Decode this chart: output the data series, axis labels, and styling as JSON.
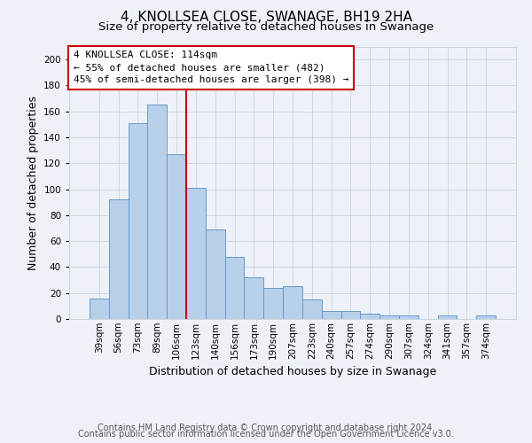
{
  "title": "4, KNOLLSEA CLOSE, SWANAGE, BH19 2HA",
  "subtitle": "Size of property relative to detached houses in Swanage",
  "xlabel": "Distribution of detached houses by size in Swanage",
  "ylabel": "Number of detached properties",
  "bar_labels": [
    "39sqm",
    "56sqm",
    "73sqm",
    "89sqm",
    "106sqm",
    "123sqm",
    "140sqm",
    "156sqm",
    "173sqm",
    "190sqm",
    "207sqm",
    "223sqm",
    "240sqm",
    "257sqm",
    "274sqm",
    "290sqm",
    "307sqm",
    "324sqm",
    "341sqm",
    "357sqm",
    "374sqm"
  ],
  "bar_values": [
    16,
    92,
    151,
    165,
    127,
    101,
    69,
    48,
    32,
    24,
    25,
    15,
    6,
    6,
    4,
    3,
    3,
    0,
    3,
    0,
    3
  ],
  "bar_color": "#b8d0ea",
  "bar_edge_color": "#6699cc",
  "vline_color": "#cc0000",
  "vline_pos": 4.5,
  "ylim": [
    0,
    210
  ],
  "yticks": [
    0,
    20,
    40,
    60,
    80,
    100,
    120,
    140,
    160,
    180,
    200
  ],
  "annotation_title": "4 KNOLLSEA CLOSE: 114sqm",
  "annotation_line1": "← 55% of detached houses are smaller (482)",
  "annotation_line2": "45% of semi-detached houses are larger (398) →",
  "annotation_box_facecolor": "#ffffff",
  "annotation_box_edgecolor": "#cc0000",
  "footer1": "Contains HM Land Registry data © Crown copyright and database right 2024.",
  "footer2": "Contains public sector information licensed under the Open Government Licence v3.0.",
  "bg_color": "#eef2f8",
  "title_fontsize": 11,
  "subtitle_fontsize": 9.5,
  "ylabel_fontsize": 9,
  "xlabel_fontsize": 9,
  "tick_fontsize": 7.5,
  "annotation_fontsize": 8,
  "footer_fontsize": 7
}
